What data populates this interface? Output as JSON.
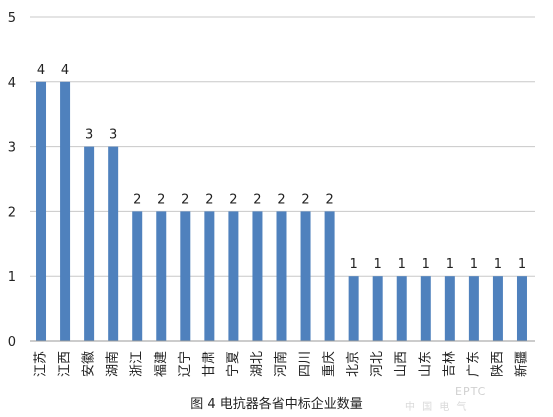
{
  "chart_data": {
    "type": "bar",
    "title": "",
    "xlabel": "",
    "ylabel": "",
    "ylim": [
      0,
      5
    ],
    "yticks": [
      "0",
      "1",
      "2",
      "3",
      "4",
      "5"
    ],
    "grid": true,
    "bar_color": "#4F81BD",
    "categories": [
      "江苏",
      "江西",
      "安徽",
      "湖南",
      "浙江",
      "福建",
      "辽宁",
      "甘肃",
      "宁夏",
      "湖北",
      "河南",
      "四川",
      "重庆",
      "北京",
      "河北",
      "山西",
      "山东",
      "吉林",
      "广东",
      "陕西",
      "新疆"
    ],
    "values": [
      4,
      4,
      3,
      3,
      2,
      2,
      2,
      2,
      2,
      2,
      2,
      2,
      2,
      1,
      1,
      1,
      1,
      1,
      1,
      1,
      1
    ],
    "data_labels": [
      "4",
      "4",
      "3",
      "3",
      "2",
      "2",
      "2",
      "2",
      "2",
      "2",
      "2",
      "2",
      "2",
      "1",
      "1",
      "1",
      "1",
      "1",
      "1",
      "1",
      "1"
    ]
  },
  "caption": "图 4 电抗器各省中标企业数量",
  "watermark": "EPTC",
  "watermark_cn": "中 国 电 气"
}
